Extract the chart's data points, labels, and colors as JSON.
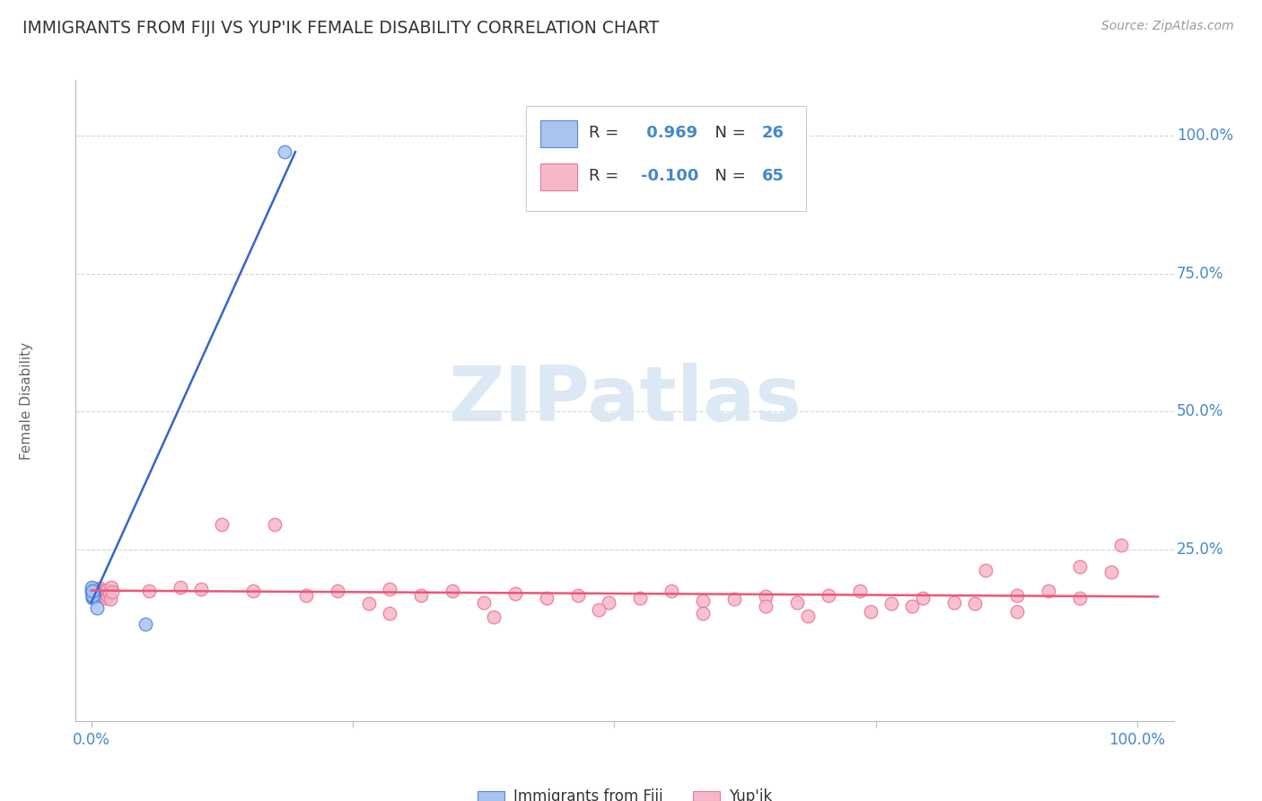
{
  "title": "IMMIGRANTS FROM FIJI VS YUP'IK FEMALE DISABILITY CORRELATION CHART",
  "source": "Source: ZipAtlas.com",
  "ylabel": "Female Disability",
  "legend_label1": "Immigrants from Fiji",
  "legend_label2": "Yup'ik",
  "R1": 0.969,
  "N1": 26,
  "R2": -0.1,
  "N2": 65,
  "fiji_color": "#aac4f0",
  "fiji_edge_color": "#5588dd",
  "fiji_line_color": "#3366cc",
  "yupik_color": "#f5b8c8",
  "yupik_edge_color": "#ee7799",
  "yupik_line_color": "#ee5577",
  "watermark_color": "#dde8f5",
  "background_color": "#ffffff",
  "grid_color": "#cccccc",
  "title_color": "#333333",
  "axis_label_color": "#4488cc",
  "fiji_scatter_x": [
    0.0005,
    0.001,
    0.0015,
    0.002,
    0.0008,
    0.0012,
    0.0018,
    0.0006,
    0.0014,
    0.002,
    0.001,
    0.0016,
    0.0007,
    0.0013,
    0.0019,
    0.0009,
    0.0011,
    0.0017,
    0.0004,
    0.0015,
    0.001,
    0.0008,
    0.0013,
    0.005,
    0.052,
    0.185
  ],
  "fiji_scatter_y": [
    0.175,
    0.17,
    0.168,
    0.172,
    0.178,
    0.165,
    0.173,
    0.18,
    0.167,
    0.171,
    0.176,
    0.169,
    0.174,
    0.163,
    0.177,
    0.166,
    0.172,
    0.17,
    0.182,
    0.164,
    0.173,
    0.168,
    0.175,
    0.145,
    0.115,
    0.97
  ],
  "yupik_scatter_x": [
    0.001,
    0.002,
    0.003,
    0.004,
    0.005,
    0.006,
    0.007,
    0.008,
    0.009,
    0.01,
    0.011,
    0.012,
    0.013,
    0.014,
    0.015,
    0.016,
    0.017,
    0.018,
    0.019,
    0.02,
    0.055,
    0.085,
    0.105,
    0.125,
    0.155,
    0.175,
    0.205,
    0.235,
    0.265,
    0.285,
    0.315,
    0.345,
    0.375,
    0.405,
    0.435,
    0.465,
    0.495,
    0.525,
    0.555,
    0.585,
    0.615,
    0.645,
    0.675,
    0.705,
    0.735,
    0.765,
    0.795,
    0.825,
    0.855,
    0.885,
    0.915,
    0.945,
    0.975,
    0.645,
    0.745,
    0.845,
    0.945,
    0.285,
    0.385,
    0.485,
    0.585,
    0.685,
    0.785,
    0.885,
    0.985
  ],
  "yupik_scatter_y": [
    0.175,
    0.18,
    0.168,
    0.172,
    0.178,
    0.165,
    0.173,
    0.18,
    0.167,
    0.171,
    0.176,
    0.169,
    0.174,
    0.163,
    0.177,
    0.166,
    0.172,
    0.16,
    0.182,
    0.174,
    0.175,
    0.182,
    0.178,
    0.295,
    0.175,
    0.295,
    0.168,
    0.175,
    0.152,
    0.178,
    0.168,
    0.175,
    0.155,
    0.17,
    0.162,
    0.168,
    0.155,
    0.162,
    0.175,
    0.158,
    0.16,
    0.165,
    0.155,
    0.168,
    0.175,
    0.152,
    0.162,
    0.155,
    0.212,
    0.168,
    0.175,
    0.22,
    0.21,
    0.148,
    0.138,
    0.152,
    0.162,
    0.135,
    0.128,
    0.142,
    0.135,
    0.13,
    0.148,
    0.138,
    0.258
  ]
}
